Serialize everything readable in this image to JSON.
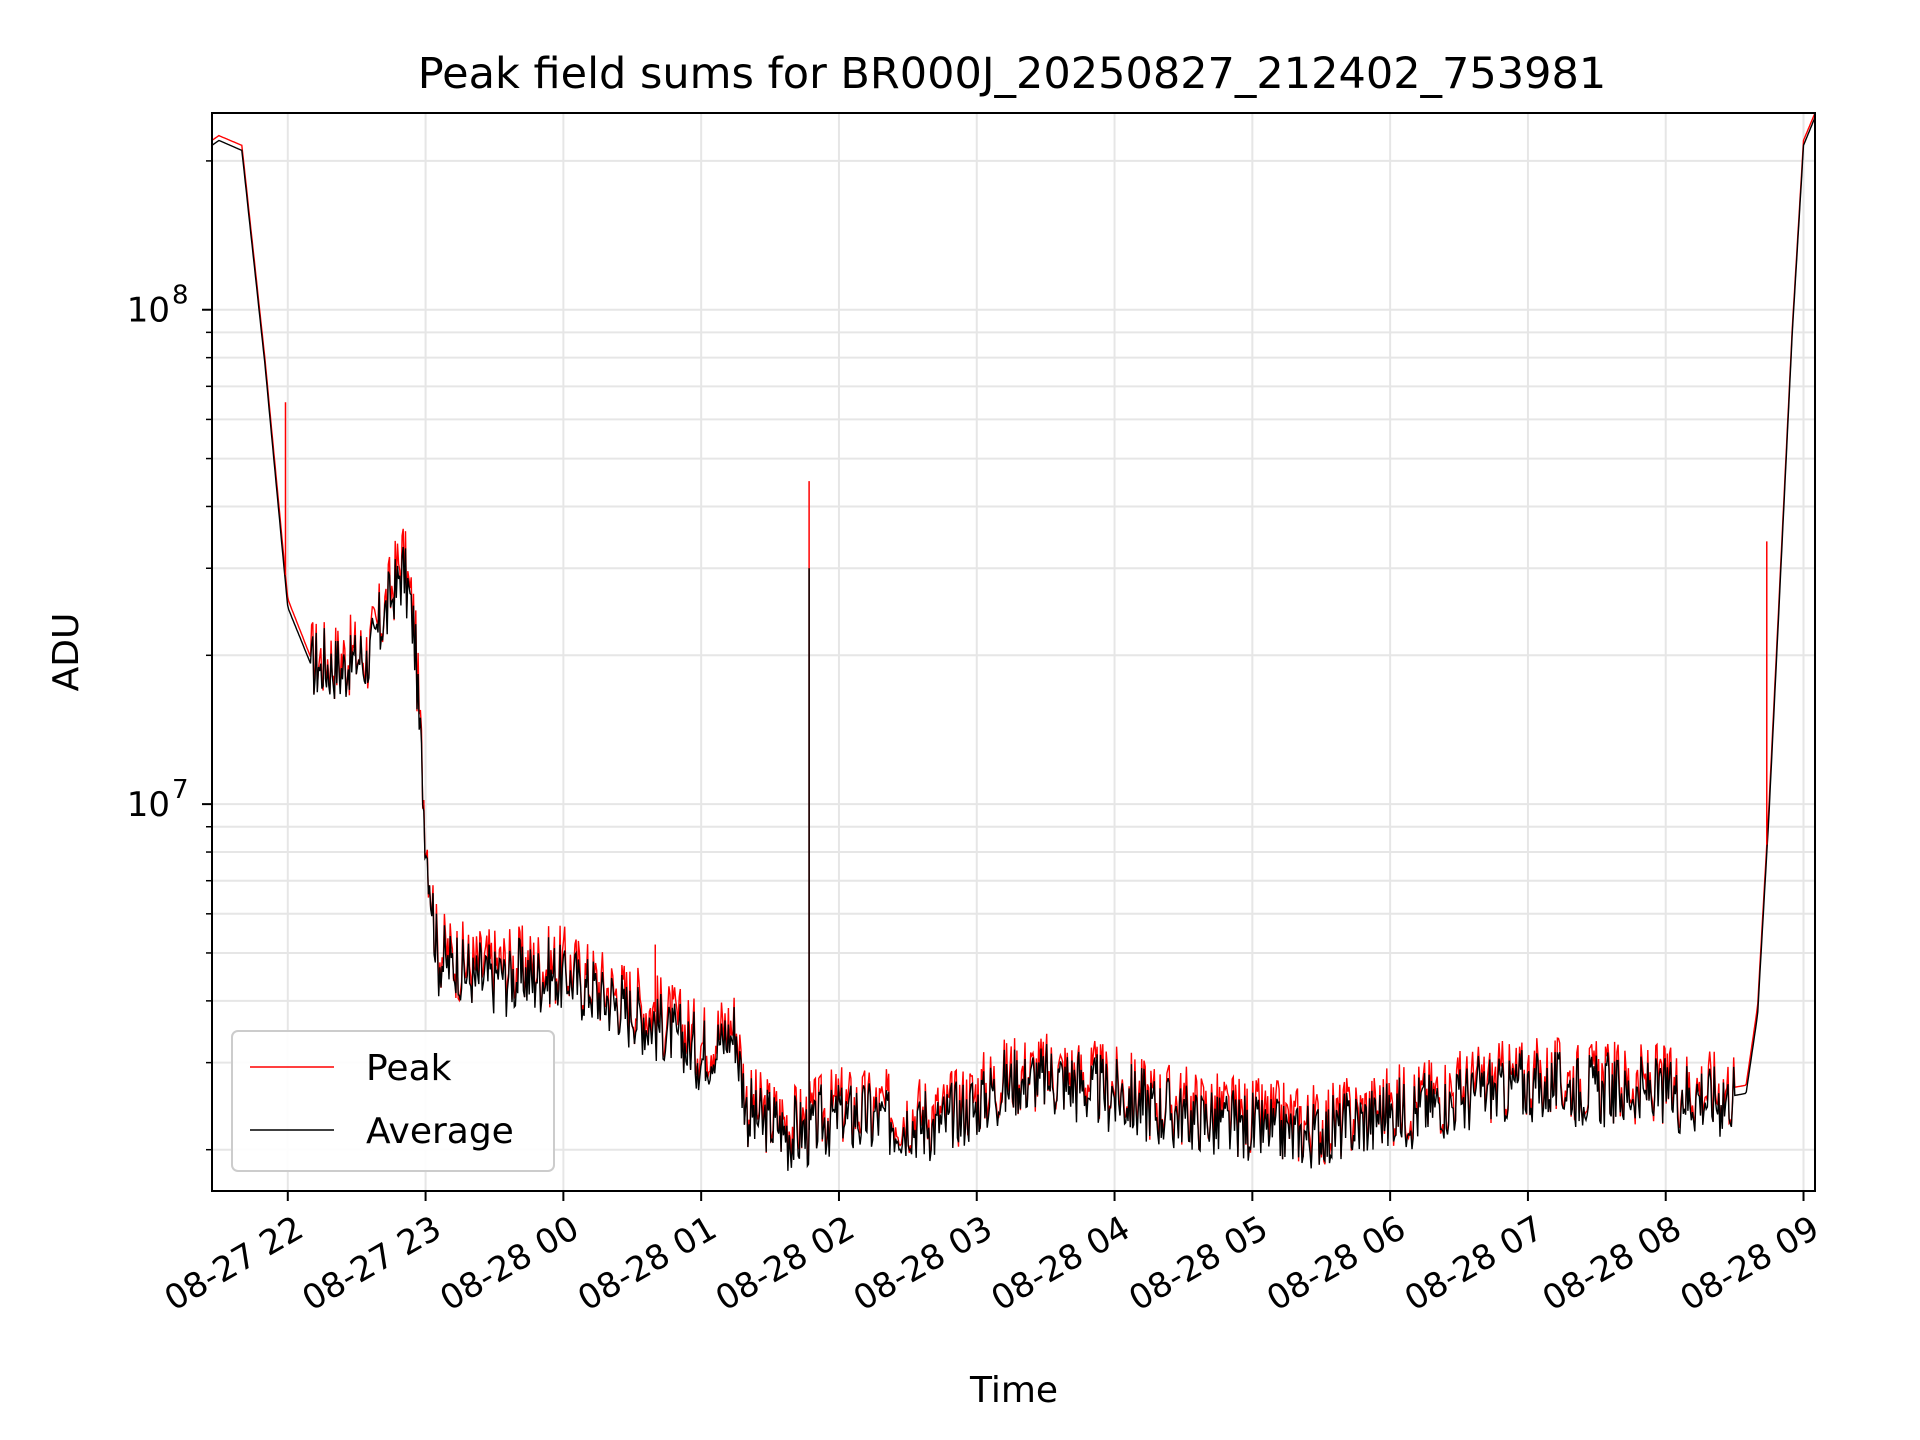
{
  "chart_data": {
    "type": "line",
    "title": "Peak field sums for BR000J_20250827_212402_753981",
    "xlabel": "Time",
    "ylabel": "ADU",
    "yscale": "log",
    "ylim": [
      1650000,
      250000000
    ],
    "xlim": [
      "2025-08-27 21:27",
      "2025-08-28 09:05"
    ],
    "grid": true,
    "legend_position": "lower-left",
    "x_tick_labels": [
      "08-27 22",
      "08-27 23",
      "08-28 00",
      "08-28 01",
      "08-28 02",
      "08-28 03",
      "08-28 04",
      "08-28 05",
      "08-28 06",
      "08-28 07",
      "08-28 08",
      "08-28 09"
    ],
    "y_tick_labels": [
      {
        "value": 100000000,
        "base": "10",
        "exp": "8"
      },
      {
        "value": 10000000,
        "base": "10",
        "exp": "7"
      }
    ],
    "x": [
      "2025-08-27 21:27",
      "2025-08-27 21:30",
      "2025-08-27 21:40",
      "2025-08-27 21:50",
      "2025-08-27 22:00",
      "2025-08-27 22:10",
      "2025-08-27 22:20",
      "2025-08-27 22:35",
      "2025-08-27 22:45",
      "2025-08-27 22:50",
      "2025-08-27 22:55",
      "2025-08-27 23:00",
      "2025-08-27 23:05",
      "2025-08-27 23:20",
      "2025-08-27 23:40",
      "2025-08-28 00:00",
      "2025-08-28 00:20",
      "2025-08-28 00:40",
      "2025-08-28 01:00",
      "2025-08-28 01:15",
      "2025-08-28 01:20",
      "2025-08-28 01:40",
      "2025-08-28 01:48",
      "2025-08-28 02:00",
      "2025-08-28 02:20",
      "2025-08-28 02:45",
      "2025-08-28 03:15",
      "2025-08-28 03:40",
      "2025-08-28 04:20",
      "2025-08-28 05:00",
      "2025-08-28 05:30",
      "2025-08-28 06:00",
      "2025-08-28 06:30",
      "2025-08-28 07:00",
      "2025-08-28 07:30",
      "2025-08-28 08:00",
      "2025-08-28 08:25",
      "2025-08-28 08:35",
      "2025-08-28 08:40",
      "2025-08-28 08:45",
      "2025-08-28 08:50",
      "2025-08-28 08:55",
      "2025-08-28 09:00",
      "2025-08-28 09:05"
    ],
    "series": [
      {
        "name": "Peak",
        "color": "#ff0000",
        "values": [
          220000000,
          225000000,
          215000000,
          80000000,
          26000000,
          19800000,
          19600000,
          20200000,
          27000000,
          32000000,
          23500000,
          9000000,
          5100000,
          4700000,
          4700000,
          4700000,
          4200000,
          3800000,
          3300000,
          3600000,
          2450000,
          2250000,
          2300000,
          2450000,
          2400000,
          2350000,
          2850000,
          2850000,
          2500000,
          2300000,
          2250000,
          2450000,
          2650000,
          2800000,
          2750000,
          2700000,
          2650000,
          2700000,
          3900000,
          10000000,
          30000000,
          90000000,
          220000000,
          250000000
        ]
      },
      {
        "name": "Average",
        "color": "#000000",
        "values": [
          215000000,
          220000000,
          210000000,
          78000000,
          25000000,
          19200000,
          19000000,
          19600000,
          26000000,
          30000000,
          22500000,
          8700000,
          4900000,
          4500000,
          4500000,
          4500000,
          4000000,
          3600000,
          3100000,
          3450000,
          2350000,
          2150000,
          2200000,
          2350000,
          2300000,
          2250000,
          2750000,
          2750000,
          2400000,
          2200000,
          2150000,
          2350000,
          2550000,
          2700000,
          2650000,
          2600000,
          2550000,
          2600000,
          3750000,
          9600000,
          29000000,
          88000000,
          215000000,
          245000000
        ]
      }
    ],
    "spikes": [
      {
        "x": "2025-08-27 21:59",
        "value": 65000000,
        "series": "Peak"
      },
      {
        "x": "2025-08-28 00:40",
        "value": 5200000,
        "series": "Peak"
      },
      {
        "x": "2025-08-28 01:47",
        "value": 45000000,
        "series": "Peak"
      },
      {
        "x": "2025-08-28 01:47",
        "value": 30000000,
        "series": "Average"
      },
      {
        "x": "2025-08-28 08:44",
        "value": 34000000,
        "series": "Peak"
      }
    ]
  }
}
